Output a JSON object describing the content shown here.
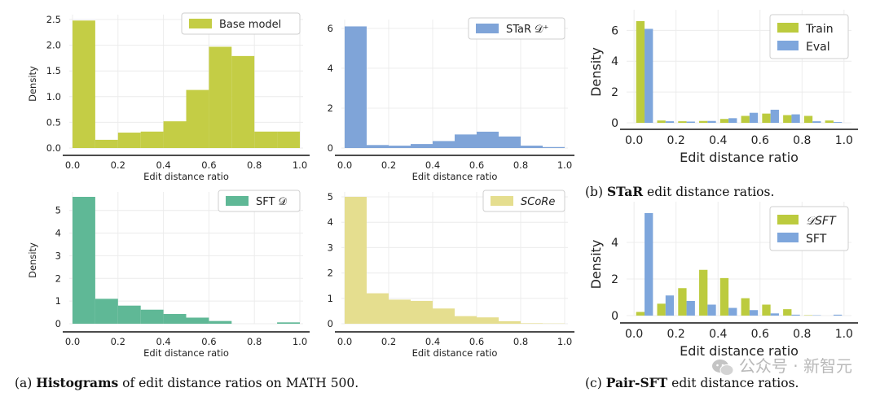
{
  "captions": {
    "a": {
      "prefix": "(a) ",
      "bold": "Histograms",
      "rest": " of edit distance ratios on MATH 500."
    },
    "b": {
      "prefix": "(b) ",
      "bold": "STaR",
      "rest": " edit distance ratios."
    },
    "c": {
      "prefix": "(c) ",
      "bold": "Pair-SFT",
      "rest": " edit distance ratios."
    }
  },
  "watermark": "公众号 · 新智元",
  "colors": {
    "base": "#c4cd45",
    "star": "#7fa4d8",
    "sft": "#5fb896",
    "score": "#e5de8f",
    "train": "#bccb3e",
    "eval": "#7ea6dc"
  },
  "chart_data": [
    {
      "id": "base",
      "type": "bar",
      "subtype": "histogram",
      "title": "",
      "xlabel": "Edit distance ratio",
      "ylabel": "Density",
      "xlim": [
        0.0,
        1.0
      ],
      "ylim": [
        0,
        2.5
      ],
      "xticks": [
        "0.0",
        "0.2",
        "0.4",
        "0.6",
        "0.8",
        "1.0"
      ],
      "yticks": [
        "0.0",
        "0.5",
        "1.0",
        "1.5",
        "2.0",
        "2.5"
      ],
      "bin_edges": [
        0.0,
        0.1,
        0.2,
        0.3,
        0.4,
        0.5,
        0.6,
        0.7,
        0.8,
        0.9,
        1.0
      ],
      "values": [
        2.48,
        0.16,
        0.3,
        0.32,
        0.52,
        1.13,
        1.97,
        1.79,
        0.32,
        0.32
      ],
      "legend": "Base model",
      "legend_loc": "upper right",
      "grid": true
    },
    {
      "id": "star",
      "type": "bar",
      "subtype": "histogram",
      "title": "",
      "xlabel": "Edit distance ratio",
      "ylabel": "",
      "xlim": [
        0.0,
        1.0
      ],
      "ylim": [
        0,
        6.2
      ],
      "xticks": [
        "0.0",
        "0.2",
        "0.4",
        "0.6",
        "0.8",
        "1.0"
      ],
      "yticks": [
        "0",
        "2",
        "4",
        "6"
      ],
      "bin_edges": [
        0.0,
        0.1,
        0.2,
        0.3,
        0.4,
        0.5,
        0.6,
        0.7,
        0.8,
        0.9,
        1.0
      ],
      "values": [
        6.1,
        0.15,
        0.12,
        0.2,
        0.35,
        0.68,
        0.82,
        0.58,
        0.12,
        0.05
      ],
      "legend": "STaR 𝒟⁺",
      "legend_loc": "upper right",
      "grid": true
    },
    {
      "id": "sft",
      "type": "bar",
      "subtype": "histogram",
      "title": "",
      "xlabel": "Edit distance ratio",
      "ylabel": "Density",
      "xlim": [
        0.0,
        1.0
      ],
      "ylim": [
        0,
        5.6
      ],
      "xticks": [
        "0.0",
        "0.2",
        "0.4",
        "0.6",
        "0.8",
        "1.0"
      ],
      "yticks": [
        "0",
        "1",
        "2",
        "3",
        "4",
        "5"
      ],
      "bin_edges": [
        0.0,
        0.1,
        0.2,
        0.3,
        0.4,
        0.5,
        0.6,
        0.7,
        0.8,
        0.9,
        1.0
      ],
      "values": [
        5.6,
        1.1,
        0.8,
        0.62,
        0.43,
        0.27,
        0.12,
        0.0,
        0.0,
        0.06
      ],
      "legend": "SFT 𝒟",
      "legend_loc": "upper right",
      "grid": true
    },
    {
      "id": "score",
      "type": "bar",
      "subtype": "histogram",
      "title": "",
      "xlabel": "Edit distance ratio",
      "ylabel": "",
      "xlim": [
        0.0,
        1.0
      ],
      "ylim": [
        0,
        5.0
      ],
      "xticks": [
        "0.0",
        "0.2",
        "0.4",
        "0.6",
        "0.8",
        "1.0"
      ],
      "yticks": [
        "0",
        "1",
        "2",
        "3",
        "4",
        "5"
      ],
      "bin_edges": [
        0.0,
        0.1,
        0.2,
        0.3,
        0.4,
        0.5,
        0.6,
        0.7,
        0.8,
        0.9,
        1.0
      ],
      "values": [
        5.0,
        1.2,
        0.95,
        0.9,
        0.6,
        0.3,
        0.25,
        0.1,
        0.02,
        0.01
      ],
      "legend": "SCoRe",
      "legend_loc": "upper right",
      "grid": true
    },
    {
      "id": "b",
      "type": "bar",
      "subtype": "grouped",
      "title": "",
      "xlabel": "Edit distance ratio",
      "ylabel": "Density",
      "xlim": [
        -0.02,
        1.02
      ],
      "ylim": [
        0,
        6.6
      ],
      "xticks": [
        "0.0",
        "0.2",
        "0.4",
        "0.6",
        "0.8",
        "1.0"
      ],
      "yticks": [
        "0",
        "2",
        "4",
        "6"
      ],
      "categories": [
        0.05,
        0.15,
        0.25,
        0.35,
        0.45,
        0.55,
        0.65,
        0.75,
        0.85,
        0.95
      ],
      "series": [
        {
          "name": "Train",
          "values": [
            6.6,
            0.15,
            0.1,
            0.12,
            0.25,
            0.45,
            0.6,
            0.5,
            0.45,
            0.15
          ]
        },
        {
          "name": "Eval",
          "values": [
            6.1,
            0.1,
            0.08,
            0.12,
            0.3,
            0.65,
            0.85,
            0.55,
            0.1,
            0.05
          ]
        }
      ],
      "legend_loc": "upper right",
      "grid": true
    },
    {
      "id": "c",
      "type": "bar",
      "subtype": "grouped",
      "title": "",
      "xlabel": "Edit distance ratio",
      "ylabel": "Density",
      "xlim": [
        -0.02,
        1.02
      ],
      "ylim": [
        0,
        5.6
      ],
      "xticks": [
        "0.0",
        "0.2",
        "0.4",
        "0.6",
        "0.8",
        "1.0"
      ],
      "yticks": [
        "0",
        "2",
        "4"
      ],
      "categories": [
        0.05,
        0.15,
        0.25,
        0.35,
        0.45,
        0.55,
        0.65,
        0.75,
        0.85,
        0.95
      ],
      "series": [
        {
          "name": "𝒟SFT",
          "values": [
            0.2,
            0.65,
            1.5,
            2.5,
            2.05,
            0.95,
            0.6,
            0.35,
            0.02,
            0.0
          ]
        },
        {
          "name": "SFT",
          "values": [
            5.6,
            1.1,
            0.8,
            0.6,
            0.42,
            0.3,
            0.12,
            0.05,
            0.02,
            0.05
          ]
        }
      ],
      "legend_loc": "upper right",
      "grid": true
    }
  ]
}
